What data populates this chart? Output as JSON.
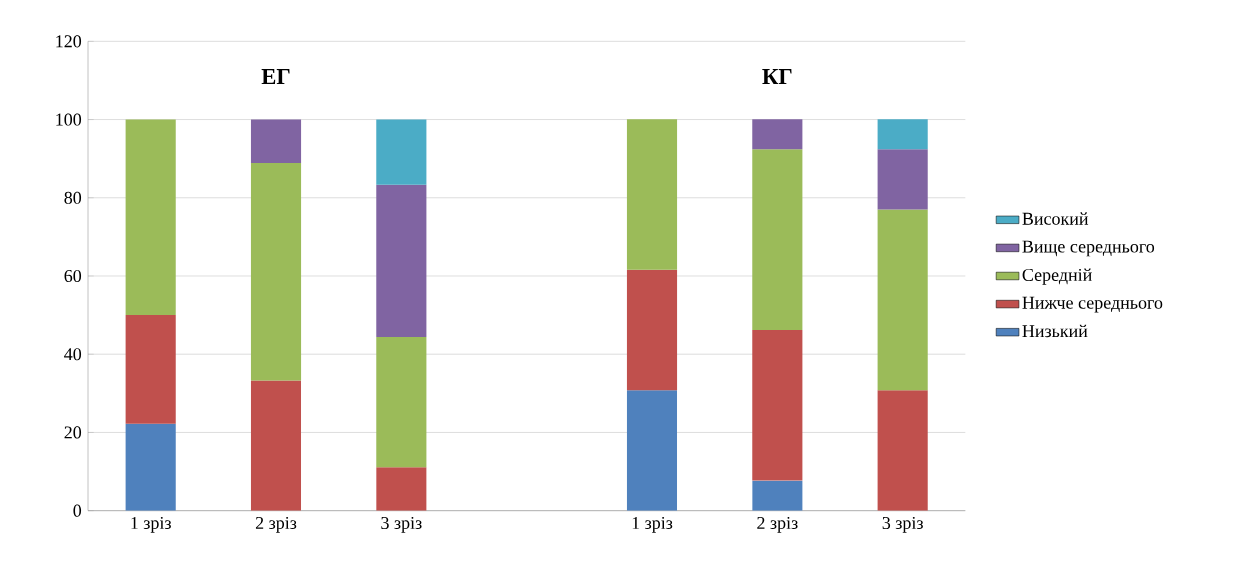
{
  "chart_data": {
    "type": "bar",
    "stacked": true,
    "categories": [
      "1 зріз",
      "2 зріз",
      "3 зріз",
      null,
      "1 зріз",
      "2 зріз",
      "3 зріз"
    ],
    "series": [
      {
        "name": "Низький",
        "color": "#4f81bd",
        "values": [
          22.2,
          0,
          0,
          null,
          30.8,
          7.7,
          0
        ]
      },
      {
        "name": "Нижче середнього",
        "color": "#c0504d",
        "values": [
          27.8,
          33.3,
          11.1,
          null,
          30.8,
          38.5,
          30.8
        ]
      },
      {
        "name": "Середній",
        "color": "#9bbb59",
        "values": [
          50,
          55.6,
          33.3,
          null,
          38.5,
          46.2,
          46.2
        ]
      },
      {
        "name": "Вище середнього",
        "color": "#8064a2",
        "values": [
          0,
          11.1,
          38.9,
          null,
          0,
          7.7,
          15.4
        ]
      },
      {
        "name": "Високий",
        "color": "#4bacc6",
        "values": [
          0,
          0,
          16.7,
          null,
          0,
          0,
          7.7
        ]
      }
    ],
    "annotations": [
      "ЕГ",
      "КГ"
    ],
    "ylim": [
      0,
      120
    ],
    "yticks": [
      0,
      20,
      40,
      60,
      80,
      100,
      120
    ],
    "grid": "y",
    "legend": "right"
  }
}
